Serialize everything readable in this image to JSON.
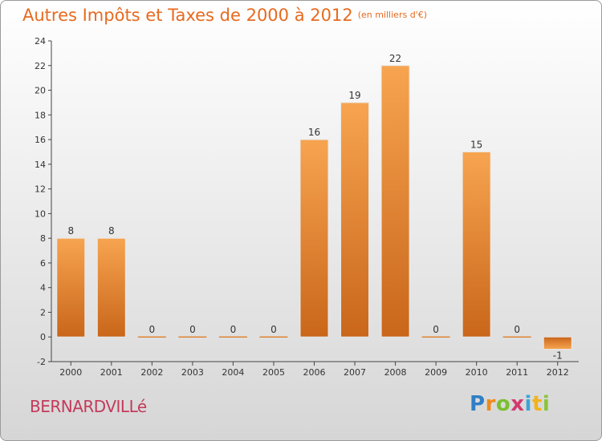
{
  "title": "Autres Impôts et Taxes de 2000 à 2012",
  "unit_note": "(en milliers d'€)",
  "commune": "BERNARDVILLé",
  "logo_text": "Proxiti",
  "colors": {
    "bar_top": "#f7a450",
    "bar_bottom": "#c9661a",
    "title": "#e86a1f",
    "commune": "#c43a5a"
  },
  "chart_data": {
    "type": "bar",
    "title": "Autres Impôts et Taxes de 2000 à 2012",
    "xlabel": "",
    "ylabel": "",
    "categories": [
      "2000",
      "2001",
      "2002",
      "2003",
      "2004",
      "2005",
      "2006",
      "2007",
      "2008",
      "2009",
      "2010",
      "2011",
      "2012"
    ],
    "values": [
      8,
      8,
      0,
      0,
      0,
      0,
      16,
      19,
      22,
      0,
      15,
      0,
      -1
    ],
    "ylim": [
      -2,
      24
    ],
    "yticks": [
      -2,
      0,
      2,
      4,
      6,
      8,
      10,
      12,
      14,
      16,
      18,
      20,
      22,
      24
    ],
    "grid": false,
    "legend": "none"
  }
}
